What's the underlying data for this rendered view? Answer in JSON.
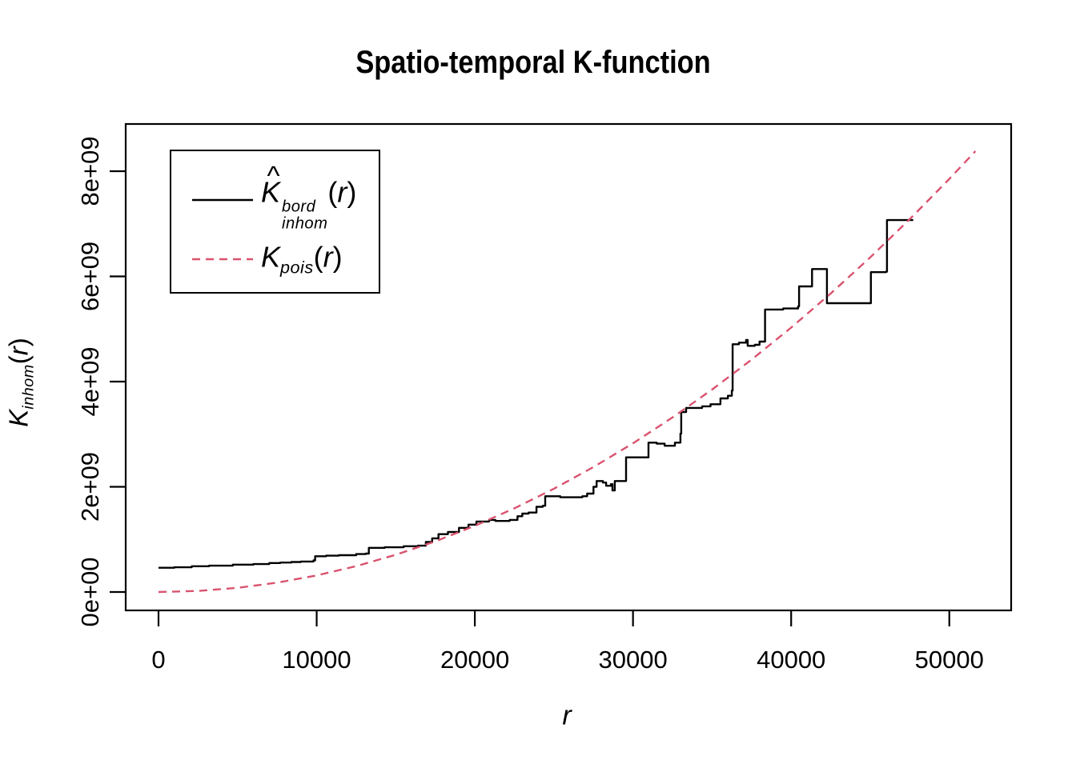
{
  "title": "Spatio-temporal K-function",
  "xlabel": "r",
  "ylabel_parts": {
    "sym": "K",
    "sub": "inhom",
    "open": "(",
    "var": "r",
    "close": ")"
  },
  "chart_data": {
    "type": "line",
    "title": "Spatio-temporal K-function",
    "xlabel": "r",
    "ylabel": "K_inhom(r)",
    "xlim": [
      -2075,
      53910
    ],
    "ylim": [
      -350000000,
      8897000000
    ],
    "grid": false,
    "background": "#ffffff",
    "axis_color": "#000000",
    "x_ticks": {
      "values": [
        0,
        10000,
        20000,
        30000,
        40000,
        50000
      ],
      "labels": [
        "0",
        "10000",
        "20000",
        "30000",
        "40000",
        "50000"
      ]
    },
    "y_ticks": {
      "values": [
        0,
        2000000000.0,
        4000000000.0,
        6000000000.0,
        8000000000.0
      ],
      "labels": [
        "0e+00",
        "2e+09",
        "4e+09",
        "6e+09",
        "8e+09"
      ]
    },
    "legend": {
      "position": "top-left-inset",
      "items": [
        {
          "sym": "K",
          "hat": "^",
          "sup": "bord",
          "sub": "inhom",
          "open": "(",
          "var": "r",
          "close": ")",
          "style": "solid",
          "color": "#000000"
        },
        {
          "sym": "K",
          "sup": "",
          "sub": "pois",
          "open": "(",
          "var": "r",
          "close": ")",
          "style": "dashed",
          "color": "#d9536f"
        }
      ]
    },
    "series": [
      {
        "name": "Khat_inhom_bord_estimate",
        "render": "step",
        "color": "#000000",
        "width": 2.4,
        "dash": null,
        "points": [
          [
            0,
            460000000.0
          ],
          [
            1000,
            470000000.0
          ],
          [
            2100,
            490000000.0
          ],
          [
            3200,
            500000000.0
          ],
          [
            4700,
            520000000.0
          ],
          [
            6000,
            530000000.0
          ],
          [
            7000,
            550000000.0
          ],
          [
            7700,
            560000000.0
          ],
          [
            8400,
            570000000.0
          ],
          [
            9000,
            580000000.0
          ],
          [
            9800,
            600000000.0
          ],
          [
            9900,
            680000000.0
          ],
          [
            10600,
            690000000.0
          ],
          [
            11400,
            700000000.0
          ],
          [
            12500,
            720000000.0
          ],
          [
            13100,
            730000000.0
          ],
          [
            13300,
            840000000.0
          ],
          [
            14300,
            850000000.0
          ],
          [
            15500,
            870000000.0
          ],
          [
            16400,
            880000000.0
          ],
          [
            16900,
            950000000.0
          ],
          [
            17300,
            1020000000.0
          ],
          [
            17700,
            1100000000.0
          ],
          [
            18300,
            1140000000.0
          ],
          [
            19000,
            1220000000.0
          ],
          [
            19600,
            1280000000.0
          ],
          [
            20100,
            1340000000.0
          ],
          [
            20900,
            1370000000.0
          ],
          [
            21300,
            1350000000.0
          ],
          [
            22200,
            1370000000.0
          ],
          [
            22700,
            1440000000.0
          ],
          [
            23000,
            1490000000.0
          ],
          [
            23400,
            1510000000.0
          ],
          [
            23900,
            1620000000.0
          ],
          [
            24300,
            1640000000.0
          ],
          [
            24450,
            1820000000.0
          ],
          [
            25400,
            1800000000.0
          ],
          [
            26800,
            1820000000.0
          ],
          [
            27100,
            1870000000.0
          ],
          [
            27500,
            2000000000.0
          ],
          [
            27700,
            2110000000.0
          ],
          [
            28100,
            2080000000.0
          ],
          [
            28300,
            2020000000.0
          ],
          [
            28600,
            2050000000.0
          ],
          [
            28700,
            1930000000.0
          ],
          [
            28850,
            2110000000.0
          ],
          [
            29450,
            2110000000.0
          ],
          [
            29560,
            2560000000.0
          ],
          [
            30600,
            2560000000.0
          ],
          [
            30980,
            2840000000.0
          ],
          [
            31500,
            2820000000.0
          ],
          [
            32000,
            2780000000.0
          ],
          [
            32650,
            2840000000.0
          ],
          [
            33000,
            3010000000.0
          ],
          [
            33050,
            3420000000.0
          ],
          [
            33360,
            3500000000.0
          ],
          [
            34370,
            3530000000.0
          ],
          [
            34900,
            3570000000.0
          ],
          [
            35530,
            3680000000.0
          ],
          [
            36000,
            3730000000.0
          ],
          [
            36250,
            3830000000.0
          ],
          [
            36300,
            4710000000.0
          ],
          [
            36700,
            4740000000.0
          ],
          [
            37150,
            4790000000.0
          ],
          [
            37250,
            4680000000.0
          ],
          [
            37700,
            4700000000.0
          ],
          [
            38000,
            4760000000.0
          ],
          [
            38320,
            4760000000.0
          ],
          [
            38350,
            5370000000.0
          ],
          [
            39500,
            5390000000.0
          ],
          [
            40440,
            5430000000.0
          ],
          [
            40500,
            5810000000.0
          ],
          [
            41250,
            5810000000.0
          ],
          [
            41320,
            6140000000.0
          ],
          [
            42200,
            6140000000.0
          ],
          [
            42260,
            5490000000.0
          ],
          [
            44990,
            5490000000.0
          ],
          [
            45040,
            6080000000.0
          ],
          [
            46000,
            6090000000.0
          ],
          [
            46060,
            7070000000.0
          ],
          [
            47720,
            7070000000.0
          ]
        ]
      },
      {
        "name": "Kpois_theoretical",
        "render": "smooth",
        "color": "#d9536f",
        "width": 2.4,
        "dash": [
          10,
          7
        ],
        "points": [
          [
            0,
            0
          ],
          [
            2500,
            19600000.0
          ],
          [
            5000,
            78500000.0
          ],
          [
            7500,
            177000000.0
          ],
          [
            10000,
            314000000.0
          ],
          [
            12500,
            491000000.0
          ],
          [
            15000,
            707000000.0
          ],
          [
            17500,
            962000000.0
          ],
          [
            20000,
            1257000000.0
          ],
          [
            22500,
            1590000000.0
          ],
          [
            25000,
            1963000000.0
          ],
          [
            27500,
            2376000000.0
          ],
          [
            30000,
            2827000000.0
          ],
          [
            32500,
            3318000000.0
          ],
          [
            35000,
            3848000000.0
          ],
          [
            37500,
            4418000000.0
          ],
          [
            40000,
            5027000000.0
          ],
          [
            42500,
            5674000000.0
          ],
          [
            45000,
            6362000000.0
          ],
          [
            47500,
            7088000000.0
          ],
          [
            50000,
            7854000000.0
          ],
          [
            51650,
            8381000000.0
          ]
        ]
      }
    ]
  }
}
